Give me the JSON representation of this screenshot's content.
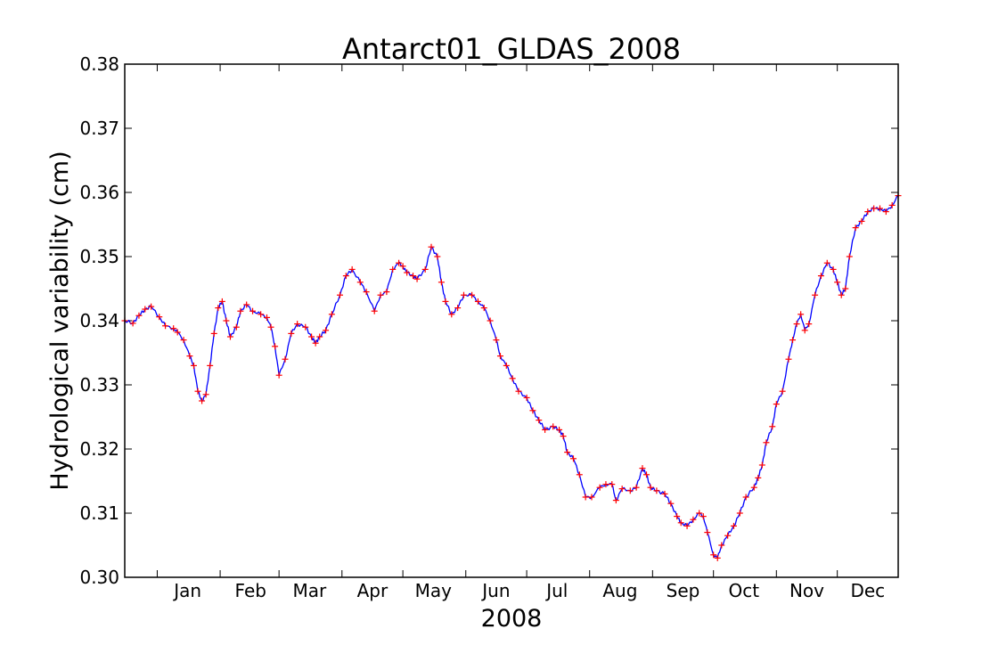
{
  "chart_data": {
    "type": "line",
    "title": "Antarct01_GLDAS_2008",
    "xlabel": "2008",
    "ylabel": "Hydrological variability (cm)",
    "xlim": [
      "2007-12-16",
      "2008-12-31"
    ],
    "ylim": [
      0.3,
      0.38
    ],
    "grid": false,
    "colors": {
      "line": "#0000ff",
      "markers": "#ff0000",
      "axes": "#000000",
      "background": "#ffffff"
    },
    "yticks": [
      {
        "value": 0.3,
        "label": "0.30"
      },
      {
        "value": 0.31,
        "label": "0.31"
      },
      {
        "value": 0.32,
        "label": "0.32"
      },
      {
        "value": 0.33,
        "label": "0.33"
      },
      {
        "value": 0.34,
        "label": "0.34"
      },
      {
        "value": 0.35,
        "label": "0.35"
      },
      {
        "value": 0.36,
        "label": "0.36"
      },
      {
        "value": 0.37,
        "label": "0.37"
      },
      {
        "value": 0.38,
        "label": "0.38"
      }
    ],
    "xticks": [
      {
        "date": "2008-01-01",
        "label": "Jan"
      },
      {
        "date": "2008-02-01",
        "label": "Feb"
      },
      {
        "date": "2008-03-01",
        "label": "Mar"
      },
      {
        "date": "2008-04-01",
        "label": "Apr"
      },
      {
        "date": "2008-05-01",
        "label": "May"
      },
      {
        "date": "2008-06-01",
        "label": "Jun"
      },
      {
        "date": "2008-07-01",
        "label": "Jul"
      },
      {
        "date": "2008-08-01",
        "label": "Aug"
      },
      {
        "date": "2008-09-01",
        "label": "Sep"
      },
      {
        "date": "2008-10-01",
        "label": "Oct"
      },
      {
        "date": "2008-11-01",
        "label": "Nov"
      },
      {
        "date": "2008-12-01",
        "label": "Dec"
      }
    ],
    "series": [
      {
        "style": "line",
        "points": [
          [
            "2007-12-16",
            0.34
          ],
          [
            "2007-12-20",
            0.3396
          ],
          [
            "2007-12-23",
            0.3408
          ],
          [
            "2007-12-26",
            0.3418
          ],
          [
            "2007-12-29",
            0.3422
          ],
          [
            "2008-01-02",
            0.3406
          ],
          [
            "2008-01-05",
            0.3392
          ],
          [
            "2008-01-09",
            0.3388
          ],
          [
            "2008-01-11",
            0.3382
          ],
          [
            "2008-01-14",
            0.337
          ],
          [
            "2008-01-17",
            0.3345
          ],
          [
            "2008-01-19",
            0.333
          ],
          [
            "2008-01-21",
            0.329
          ],
          [
            "2008-01-23",
            0.3275
          ],
          [
            "2008-01-25",
            0.3285
          ],
          [
            "2008-01-27",
            0.333
          ],
          [
            "2008-01-29",
            0.338
          ],
          [
            "2008-01-31",
            0.342
          ],
          [
            "2008-02-02",
            0.343
          ],
          [
            "2008-02-04",
            0.34
          ],
          [
            "2008-02-06",
            0.3375
          ],
          [
            "2008-02-09",
            0.339
          ],
          [
            "2008-02-11",
            0.3415
          ],
          [
            "2008-02-14",
            0.3425
          ],
          [
            "2008-02-17",
            0.3415
          ],
          [
            "2008-02-21",
            0.341
          ],
          [
            "2008-02-24",
            0.3405
          ],
          [
            "2008-02-26",
            0.339
          ],
          [
            "2008-02-28",
            0.336
          ],
          [
            "2008-03-01",
            0.3315
          ],
          [
            "2008-03-04",
            0.334
          ],
          [
            "2008-03-07",
            0.338
          ],
          [
            "2008-03-10",
            0.3395
          ],
          [
            "2008-03-14",
            0.339
          ],
          [
            "2008-03-17",
            0.3375
          ],
          [
            "2008-03-19",
            0.3365
          ],
          [
            "2008-03-21",
            0.3375
          ],
          [
            "2008-03-24",
            0.3385
          ],
          [
            "2008-03-27",
            0.341
          ],
          [
            "2008-03-31",
            0.344
          ],
          [
            "2008-04-03",
            0.347
          ],
          [
            "2008-04-06",
            0.348
          ],
          [
            "2008-04-10",
            0.346
          ],
          [
            "2008-04-13",
            0.3445
          ],
          [
            "2008-04-17",
            0.3415
          ],
          [
            "2008-04-20",
            0.344
          ],
          [
            "2008-04-23",
            0.3445
          ],
          [
            "2008-04-26",
            0.348
          ],
          [
            "2008-04-29",
            0.349
          ],
          [
            "2008-05-01",
            0.3485
          ],
          [
            "2008-05-03",
            0.3475
          ],
          [
            "2008-05-06",
            0.347
          ],
          [
            "2008-05-08",
            0.3465
          ],
          [
            "2008-05-12",
            0.348
          ],
          [
            "2008-05-15",
            0.3515
          ],
          [
            "2008-05-18",
            0.35
          ],
          [
            "2008-05-20",
            0.346
          ],
          [
            "2008-05-22",
            0.343
          ],
          [
            "2008-05-25",
            0.341
          ],
          [
            "2008-05-28",
            0.342
          ],
          [
            "2008-05-31",
            0.344
          ],
          [
            "2008-06-04",
            0.344
          ],
          [
            "2008-06-07",
            0.343
          ],
          [
            "2008-06-10",
            0.342
          ],
          [
            "2008-06-13",
            0.34
          ],
          [
            "2008-06-16",
            0.337
          ],
          [
            "2008-06-18",
            0.3345
          ],
          [
            "2008-06-21",
            0.333
          ],
          [
            "2008-06-24",
            0.331
          ],
          [
            "2008-06-27",
            0.329
          ],
          [
            "2008-07-01",
            0.328
          ],
          [
            "2008-07-04",
            0.326
          ],
          [
            "2008-07-07",
            0.3245
          ],
          [
            "2008-07-10",
            0.323
          ],
          [
            "2008-07-14",
            0.3235
          ],
          [
            "2008-07-17",
            0.323
          ],
          [
            "2008-07-19",
            0.322
          ],
          [
            "2008-07-21",
            0.3195
          ],
          [
            "2008-07-24",
            0.3185
          ],
          [
            "2008-07-27",
            0.316
          ],
          [
            "2008-07-30",
            0.3125
          ],
          [
            "2008-08-02",
            0.3125
          ],
          [
            "2008-08-06",
            0.314
          ],
          [
            "2008-08-09",
            0.3145
          ],
          [
            "2008-08-12",
            0.3145
          ],
          [
            "2008-08-14",
            0.312
          ],
          [
            "2008-08-17",
            0.3138
          ],
          [
            "2008-08-21",
            0.3135
          ],
          [
            "2008-08-24",
            0.314
          ],
          [
            "2008-08-27",
            0.317
          ],
          [
            "2008-08-29",
            0.316
          ],
          [
            "2008-08-31",
            0.314
          ],
          [
            "2008-09-03",
            0.3135
          ],
          [
            "2008-09-07",
            0.313
          ],
          [
            "2008-09-10",
            0.3115
          ],
          [
            "2008-09-13",
            0.3095
          ],
          [
            "2008-09-15",
            0.3085
          ],
          [
            "2008-09-18",
            0.308
          ],
          [
            "2008-09-21",
            0.309
          ],
          [
            "2008-09-24",
            0.31
          ],
          [
            "2008-09-26",
            0.3095
          ],
          [
            "2008-09-28",
            0.307
          ],
          [
            "2008-10-01",
            0.3035
          ],
          [
            "2008-10-03",
            0.303
          ],
          [
            "2008-10-05",
            0.305
          ],
          [
            "2008-10-08",
            0.3065
          ],
          [
            "2008-10-11",
            0.308
          ],
          [
            "2008-10-14",
            0.31
          ],
          [
            "2008-10-17",
            0.3125
          ],
          [
            "2008-10-21",
            0.314
          ],
          [
            "2008-10-23",
            0.3155
          ],
          [
            "2008-10-25",
            0.3175
          ],
          [
            "2008-10-27",
            0.321
          ],
          [
            "2008-10-30",
            0.3235
          ],
          [
            "2008-11-01",
            0.327
          ],
          [
            "2008-11-04",
            0.329
          ],
          [
            "2008-11-07",
            0.334
          ],
          [
            "2008-11-09",
            0.337
          ],
          [
            "2008-11-11",
            0.3395
          ],
          [
            "2008-11-13",
            0.341
          ],
          [
            "2008-11-15",
            0.3385
          ],
          [
            "2008-11-17",
            0.3395
          ],
          [
            "2008-11-20",
            0.344
          ],
          [
            "2008-11-23",
            0.347
          ],
          [
            "2008-11-26",
            0.349
          ],
          [
            "2008-11-29",
            0.348
          ],
          [
            "2008-12-01",
            0.346
          ],
          [
            "2008-12-03",
            0.344
          ],
          [
            "2008-12-05",
            0.345
          ],
          [
            "2008-12-07",
            0.35
          ],
          [
            "2008-12-10",
            0.3545
          ],
          [
            "2008-12-13",
            0.3555
          ],
          [
            "2008-12-16",
            0.357
          ],
          [
            "2008-12-19",
            0.3575
          ],
          [
            "2008-12-22",
            0.3575
          ],
          [
            "2008-12-25",
            0.357
          ],
          [
            "2008-12-28",
            0.358
          ],
          [
            "2008-12-31",
            0.3595
          ]
        ]
      }
    ]
  }
}
